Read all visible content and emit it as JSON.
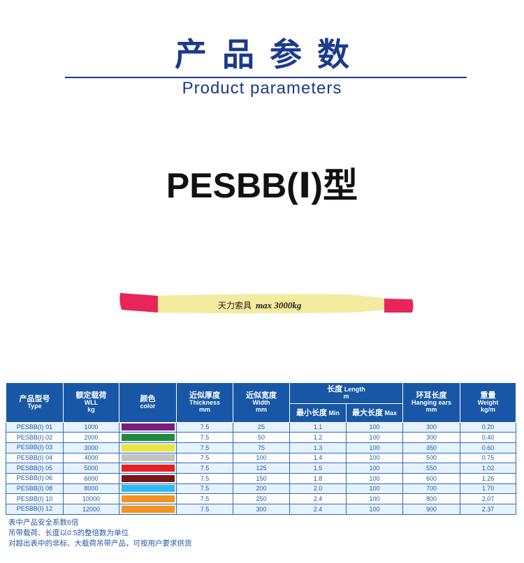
{
  "header": {
    "title_cn": "产品参数",
    "title_en": "Product parameters"
  },
  "model": "PESBB(Ⅰ)型",
  "product_image": {
    "label_cn": "天力索具",
    "label_load": "max 3000kg",
    "body_color": "#f4eaa0",
    "end_color": "#e8245a"
  },
  "table": {
    "headers": {
      "type": {
        "cn": "产品型号",
        "en": "Type"
      },
      "wll": {
        "cn": "额定载荷",
        "en": "WLL",
        "unit": "kg"
      },
      "color": {
        "cn": "颜色",
        "en": "color"
      },
      "thickness": {
        "cn": "近似厚度",
        "en": "Thickness",
        "unit": "mm"
      },
      "width": {
        "cn": "近似宽度",
        "en": "Width",
        "unit": "mm"
      },
      "length": {
        "cn": "长度",
        "en": "Length",
        "unit": "m"
      },
      "min": {
        "cn": "最小长度",
        "en": "Min"
      },
      "max": {
        "cn": "最大长度",
        "en": "Max"
      },
      "ears": {
        "cn": "环耳长度",
        "en": "Hanging ears",
        "unit": "mm"
      },
      "weight": {
        "cn": "重量",
        "en": "Weight",
        "unit": "kg/m"
      }
    },
    "rows": [
      {
        "type": "PESBB(Ⅰ) 01",
        "wll": "1000",
        "color": "#7b1f78",
        "thickness": "7.5",
        "width": "25",
        "min": "1.1",
        "max": "100",
        "ears": "300",
        "weight": "0.20"
      },
      {
        "type": "PESBB(Ⅰ) 02",
        "wll": "2000",
        "color": "#1f8a3a",
        "thickness": "7.5",
        "width": "50",
        "min": "1.2",
        "max": "100",
        "ears": "300",
        "weight": "0.40"
      },
      {
        "type": "PESBB(Ⅰ) 03",
        "wll": "3000",
        "color": "#eee53a",
        "thickness": "7.5",
        "width": "75",
        "min": "1.3",
        "max": "100",
        "ears": "350",
        "weight": "0.60"
      },
      {
        "type": "PESBB(Ⅰ) 04",
        "wll": "4000",
        "color": "#c2c2c2",
        "thickness": "7.5",
        "width": "100",
        "min": "1.4",
        "max": "100",
        "ears": "500",
        "weight": "0.75"
      },
      {
        "type": "PESBB(Ⅰ) 05",
        "wll": "5000",
        "color": "#e42020",
        "thickness": "7.5",
        "width": "125",
        "min": "1.5",
        "max": "100",
        "ears": "550",
        "weight": "1.02"
      },
      {
        "type": "PESBB(Ⅰ) 06",
        "wll": "6000",
        "color": "#7a1519",
        "thickness": "7.5",
        "width": "150",
        "min": "1.8",
        "max": "100",
        "ears": "600",
        "weight": "1.26"
      },
      {
        "type": "PESBB(Ⅰ) 08",
        "wll": "8000",
        "color": "#35b8ea",
        "thickness": "7.5",
        "width": "200",
        "min": "2.0",
        "max": "100",
        "ears": "700",
        "weight": "1.70"
      },
      {
        "type": "PESBB(Ⅰ) 10",
        "wll": "10000",
        "color": "#f39320",
        "thickness": "7.5",
        "width": "250",
        "min": "2.4",
        "max": "100",
        "ears": "800",
        "weight": "2.07"
      },
      {
        "type": "PESBB(Ⅰ) 12",
        "wll": "12000",
        "color": "#f39320",
        "thickness": "7.5",
        "width": "300",
        "min": "2.4",
        "max": "100",
        "ears": "900",
        "weight": "2.37"
      }
    ]
  },
  "notes": [
    "表中产品安全系数6倍",
    "吊带载荷、长度以0.5的整倍数为单位",
    "对超出表中的非标、大载荷吊带产品，可按用户要求供货"
  ]
}
